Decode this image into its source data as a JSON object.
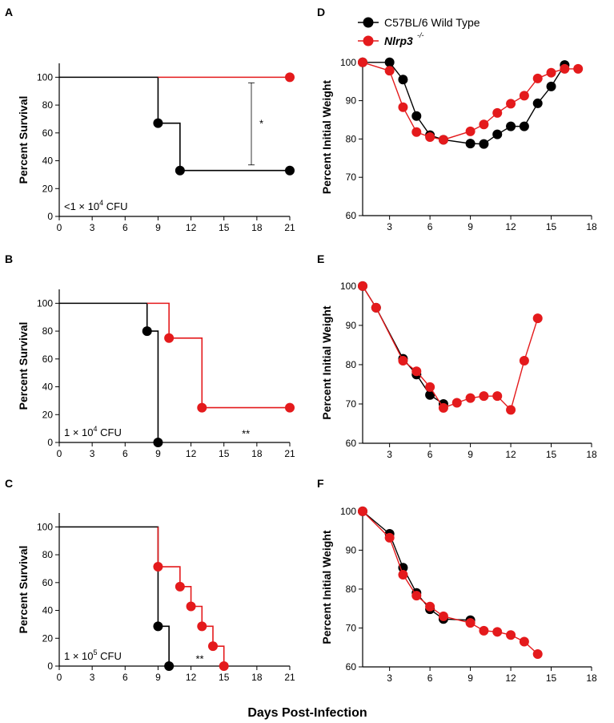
{
  "colors": {
    "wild_type": "#000000",
    "nlrp3": "#e41a1c"
  },
  "legend": {
    "wild_type": "C57BL/6 Wild Type",
    "nlrp3_name": "Nlrp3",
    "nlrp3_sup": "-/-"
  },
  "x_axis_title": "Days Post-Infection",
  "chart_data": [
    {
      "panel": "A",
      "type": "line",
      "style": "step",
      "ylabel": "Percent Survival",
      "xlim": [
        0,
        21
      ],
      "xticks": [
        0,
        3,
        6,
        9,
        12,
        15,
        18,
        21
      ],
      "ylim": [
        0,
        110
      ],
      "yticks": [
        0,
        20,
        40,
        60,
        80,
        100
      ],
      "dose_prefix": "<1 × 10",
      "dose_exp": "4",
      "dose_suffix": " CFU",
      "significance": "*",
      "sig_bracket": {
        "x": 17.5,
        "y_low": 37,
        "y_high": 96
      },
      "series": [
        {
          "name": "C57BL/6 Wild Type",
          "key": "wild_type",
          "line": [
            [
              0,
              100
            ],
            [
              9,
              100
            ],
            [
              9,
              67
            ],
            [
              11,
              67
            ],
            [
              11,
              33
            ],
            [
              21,
              33
            ]
          ],
          "points": [
            [
              9,
              67
            ],
            [
              11,
              33
            ],
            [
              21,
              33
            ]
          ]
        },
        {
          "name": "Nlrp3-/-",
          "key": "nlrp3",
          "line": [
            [
              9,
              100
            ],
            [
              21,
              100
            ]
          ],
          "points": [
            [
              21,
              100
            ]
          ]
        }
      ]
    },
    {
      "panel": "B",
      "type": "line",
      "style": "step",
      "ylabel": "Percent Survival",
      "xlim": [
        0,
        21
      ],
      "xticks": [
        0,
        3,
        6,
        9,
        12,
        15,
        18,
        21
      ],
      "ylim": [
        0,
        110
      ],
      "yticks": [
        0,
        20,
        40,
        60,
        80,
        100
      ],
      "dose_prefix": "1 × 10",
      "dose_exp": "4",
      "dose_suffix": " CFU",
      "significance": "**",
      "series": [
        {
          "name": "C57BL/6 Wild Type",
          "key": "wild_type",
          "line": [
            [
              0,
              100
            ],
            [
              8,
              100
            ],
            [
              8,
              80
            ],
            [
              9,
              80
            ],
            [
              9,
              0
            ]
          ],
          "points": [
            [
              8,
              80
            ],
            [
              9,
              0
            ]
          ]
        },
        {
          "name": "Nlrp3-/-",
          "key": "nlrp3",
          "line": [
            [
              8,
              100
            ],
            [
              10,
              100
            ],
            [
              10,
              75
            ],
            [
              13,
              75
            ],
            [
              13,
              25
            ],
            [
              21,
              25
            ]
          ],
          "points": [
            [
              10,
              75
            ],
            [
              13,
              25
            ],
            [
              21,
              25
            ]
          ]
        }
      ]
    },
    {
      "panel": "C",
      "type": "line",
      "style": "step",
      "ylabel": "Percent Survival",
      "xlim": [
        0,
        21
      ],
      "xticks": [
        0,
        3,
        6,
        9,
        12,
        15,
        18,
        21
      ],
      "ylim": [
        0,
        110
      ],
      "yticks": [
        0,
        20,
        40,
        60,
        80,
        100
      ],
      "dose_prefix": "1 × 10",
      "dose_exp": "5",
      "dose_suffix": " CFU",
      "significance": "**",
      "series": [
        {
          "name": "C57BL/6 Wild Type",
          "key": "wild_type",
          "line": [
            [
              0,
              100
            ],
            [
              9,
              100
            ],
            [
              9,
              28.6
            ],
            [
              10,
              28.6
            ],
            [
              10,
              0
            ]
          ],
          "points": [
            [
              9,
              28.6
            ],
            [
              10,
              0
            ]
          ]
        },
        {
          "name": "Nlrp3-/-",
          "key": "nlrp3",
          "line": [
            [
              9,
              100
            ],
            [
              9,
              71.4
            ],
            [
              11,
              71.4
            ],
            [
              11,
              57.1
            ],
            [
              12,
              57.1
            ],
            [
              12,
              42.9
            ],
            [
              13,
              42.9
            ],
            [
              13,
              28.6
            ],
            [
              14,
              28.6
            ],
            [
              14,
              14.3
            ],
            [
              15,
              14.3
            ],
            [
              15,
              0
            ]
          ],
          "points": [
            [
              9,
              71.4
            ],
            [
              11,
              57.1
            ],
            [
              12,
              42.9
            ],
            [
              13,
              28.6
            ],
            [
              14,
              14.3
            ],
            [
              15,
              0
            ]
          ]
        }
      ]
    },
    {
      "panel": "D",
      "type": "line",
      "style": "line",
      "ylabel": "Percent Initial Weight",
      "xlim": [
        1,
        18
      ],
      "xticks": [
        3,
        6,
        9,
        12,
        15,
        18
      ],
      "ylim": [
        60,
        101
      ],
      "yticks": [
        60,
        70,
        80,
        90,
        100
      ],
      "series": [
        {
          "name": "C57BL/6 Wild Type",
          "key": "wild_type",
          "x": [
            1,
            3,
            4,
            5,
            6,
            7,
            9,
            10,
            11,
            12,
            13,
            14,
            15,
            16
          ],
          "y": [
            100,
            100,
            95.5,
            86,
            81,
            79.8,
            78.8,
            78.7,
            81.2,
            83.3,
            83.3,
            89.3,
            93.7,
            99.3
          ]
        },
        {
          "name": "Nlrp3-/-",
          "key": "nlrp3",
          "x": [
            1,
            3,
            4,
            5,
            6,
            7,
            9,
            10,
            11,
            12,
            13,
            14,
            15,
            16,
            17
          ],
          "y": [
            100,
            97.8,
            88.3,
            81.8,
            80.5,
            79.8,
            82,
            83.8,
            86.8,
            89.2,
            91.3,
            95.8,
            97.3,
            98.3,
            98.3
          ]
        }
      ]
    },
    {
      "panel": "E",
      "type": "line",
      "style": "line",
      "ylabel": "Percent Initial Weight",
      "xlim": [
        1,
        18
      ],
      "xticks": [
        3,
        6,
        9,
        12,
        15,
        18
      ],
      "ylim": [
        60,
        101
      ],
      "yticks": [
        60,
        70,
        80,
        90,
        100
      ],
      "series": [
        {
          "name": "C57BL/6 Wild Type",
          "key": "wild_type",
          "x": [
            1,
            2,
            4,
            5,
            6,
            7
          ],
          "y": [
            100,
            94.5,
            81.5,
            77.5,
            72.3,
            70
          ]
        },
        {
          "name": "Nlrp3-/-",
          "key": "nlrp3",
          "x": [
            1,
            2,
            4,
            5,
            6,
            7,
            8,
            9,
            10,
            11,
            12,
            13,
            14
          ],
          "y": [
            100,
            94.5,
            81,
            78.3,
            74.3,
            69,
            70.3,
            71.5,
            72,
            72,
            68.5,
            81,
            91.8
          ]
        }
      ]
    },
    {
      "panel": "F",
      "type": "line",
      "style": "line",
      "ylabel": "Percent Initial Weight",
      "xlim": [
        1,
        18
      ],
      "xticks": [
        3,
        6,
        9,
        12,
        15,
        18
      ],
      "ylim": [
        60,
        101
      ],
      "yticks": [
        60,
        70,
        80,
        90,
        100
      ],
      "series": [
        {
          "name": "C57BL/6 Wild Type",
          "key": "wild_type",
          "x": [
            1,
            3,
            4,
            5,
            6,
            7,
            9
          ],
          "y": [
            100,
            94.2,
            85.5,
            79,
            74.8,
            72.3,
            72
          ]
        },
        {
          "name": "Nlrp3-/-",
          "key": "nlrp3",
          "x": [
            1,
            3,
            4,
            5,
            6,
            7,
            9,
            10,
            11,
            12,
            13,
            14
          ],
          "y": [
            100,
            93.2,
            83.7,
            78.3,
            75.5,
            73,
            71.3,
            69.3,
            69,
            68.2,
            66.5,
            63.3
          ]
        }
      ]
    }
  ]
}
